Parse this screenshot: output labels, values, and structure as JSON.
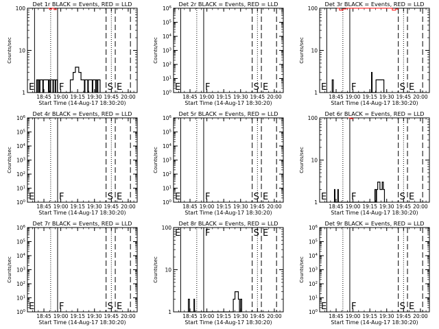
{
  "figure": {
    "xlabel": "Start Time (14-Aug-17 18:30:20)",
    "ylabel": "Counts/sec",
    "x_ticks": [
      "18:45",
      "19:00",
      "19:15",
      "19:30",
      "19:45",
      "20:00"
    ],
    "colors": {
      "events": "#000000",
      "lld": "#ff0000",
      "axes": "#000000"
    }
  },
  "chart_data": [
    {
      "type": "line",
      "title": "Det 1r BLACK = Events, RED = LLD",
      "yscale": "log",
      "ylim": [
        1,
        100
      ],
      "y_ticks": [
        "1",
        "10",
        "100"
      ],
      "xlim": [
        "18:30:20",
        "20:08:00"
      ],
      "markers": [
        {
          "time": "18:36:40",
          "style": "solid",
          "label": "E"
        },
        {
          "time": "18:51:00",
          "style": "dotted",
          "label": ""
        },
        {
          "time": "18:57:10",
          "style": "solid",
          "label": "F"
        },
        {
          "time": "19:40:20",
          "style": "dashed",
          "label": "S"
        },
        {
          "time": "19:45:00",
          "style": "dotted",
          "label": ""
        },
        {
          "time": "19:48:30",
          "style": "dashed",
          "label": "E"
        },
        {
          "time": "20:02:00",
          "style": "dashed",
          "label": ""
        }
      ],
      "series": [
        {
          "name": "Events",
          "color": "#000000",
          "points": [
            [
              "18:38:00",
              1
            ],
            [
              "18:38:30",
              2
            ],
            [
              "18:39:30",
              1
            ],
            [
              "18:40:00",
              2
            ],
            [
              "18:41:00",
              1
            ],
            [
              "18:41:30",
              2
            ],
            [
              "18:44:00",
              1
            ],
            [
              "18:44:30",
              2
            ],
            [
              "18:49:00",
              1
            ],
            [
              "18:49:30",
              2
            ],
            [
              "18:50:30",
              1
            ],
            [
              "18:51:00",
              2
            ],
            [
              "18:53:00",
              1
            ],
            [
              "18:53:30",
              2
            ],
            [
              "18:55:00",
              1
            ],
            [
              "18:55:30",
              2
            ],
            [
              "18:57:00",
              1
            ],
            [
              "19:08:00",
              1
            ],
            [
              "19:08:30",
              2
            ],
            [
              "19:11:00",
              3
            ],
            [
              "19:13:00",
              4
            ],
            [
              "19:16:00",
              3
            ],
            [
              "19:18:00",
              2
            ],
            [
              "19:21:00",
              1
            ],
            [
              "19:21:30",
              2
            ],
            [
              "19:24:00",
              1
            ],
            [
              "19:24:30",
              2
            ],
            [
              "19:28:00",
              1
            ],
            [
              "19:28:30",
              2
            ],
            [
              "19:31:00",
              1
            ],
            [
              "19:31:30",
              2
            ],
            [
              "19:32:30",
              1
            ],
            [
              "19:33:00",
              2
            ],
            [
              "19:35:00",
              1
            ]
          ]
        },
        {
          "name": "LLD",
          "color": "#ff0000",
          "points": [
            [
              "18:49:00",
              100
            ],
            [
              "18:50:00",
              95
            ],
            [
              "18:52:00",
              100
            ],
            [
              "18:54:00",
              93
            ],
            [
              "18:56:00",
              100
            ]
          ]
        }
      ]
    },
    {
      "type": "line",
      "title": "Det 2r BLACK = Events, RED = LLD",
      "yscale": "log",
      "ylim": [
        1,
        1000000
      ],
      "y_ticks": [
        "10^0",
        "10^1",
        "10^2",
        "10^3",
        "10^4",
        "10^5",
        "10^6"
      ],
      "xlim": [
        "18:30:20",
        "20:08:00"
      ],
      "markers": [
        {
          "time": "18:36:40",
          "style": "solid",
          "label": "E"
        },
        {
          "time": "18:51:00",
          "style": "dotted",
          "label": ""
        },
        {
          "time": "18:57:10",
          "style": "solid",
          "label": "F"
        },
        {
          "time": "19:40:20",
          "style": "dashed",
          "label": "S"
        },
        {
          "time": "19:45:00",
          "style": "dotted",
          "label": ""
        },
        {
          "time": "19:48:30",
          "style": "dashed",
          "label": "E"
        },
        {
          "time": "20:02:00",
          "style": "dashed",
          "label": ""
        }
      ],
      "series": []
    },
    {
      "type": "line",
      "title": "Det 3r BLACK = Events, RED = LLD",
      "yscale": "log",
      "ylim": [
        1,
        100
      ],
      "y_ticks": [
        "1",
        "10",
        "100"
      ],
      "xlim": [
        "18:30:20",
        "20:08:00"
      ],
      "markers": [
        {
          "time": "18:36:40",
          "style": "solid",
          "label": "E"
        },
        {
          "time": "18:51:00",
          "style": "dotted",
          "label": ""
        },
        {
          "time": "18:57:10",
          "style": "solid",
          "label": "F"
        },
        {
          "time": "19:40:20",
          "style": "dashed",
          "label": "S"
        },
        {
          "time": "19:45:00",
          "style": "dotted",
          "label": ""
        },
        {
          "time": "19:48:30",
          "style": "dashed",
          "label": "E"
        },
        {
          "time": "20:02:00",
          "style": "dashed",
          "label": ""
        }
      ],
      "series": [
        {
          "name": "Events",
          "color": "#000000",
          "points": [
            [
              "18:41:00",
              1
            ],
            [
              "18:41:30",
              2
            ],
            [
              "18:42:30",
              1
            ],
            [
              "19:16:00",
              1
            ],
            [
              "19:16:30",
              3
            ],
            [
              "19:17:00",
              1
            ],
            [
              "19:20:00",
              1
            ],
            [
              "19:20:30",
              2
            ],
            [
              "19:27:00",
              2
            ],
            [
              "19:27:30",
              1
            ]
          ]
        },
        {
          "name": "LLD",
          "color": "#ff0000",
          "points": [
            [
              "18:46:00",
              100
            ],
            [
              "18:48:00",
              90
            ],
            [
              "18:51:00",
              96
            ],
            [
              "18:54:00",
              100
            ],
            [
              "19:33:00",
              100
            ],
            [
              "19:35:00",
              90
            ],
            [
              "19:38:00",
              96
            ],
            [
              "19:40:00",
              100
            ]
          ]
        }
      ]
    },
    {
      "type": "line",
      "title": "Det 4r BLACK = Events, RED = LLD",
      "yscale": "log",
      "ylim": [
        1,
        1000000
      ],
      "y_ticks": [
        "10^0",
        "10^1",
        "10^2",
        "10^3",
        "10^4",
        "10^5",
        "10^6"
      ],
      "xlim": [
        "18:30:20",
        "20:08:00"
      ],
      "markers": [
        {
          "time": "18:36:40",
          "style": "solid",
          "label": "E"
        },
        {
          "time": "18:51:00",
          "style": "dotted",
          "label": ""
        },
        {
          "time": "18:57:10",
          "style": "solid",
          "label": "F"
        },
        {
          "time": "19:40:20",
          "style": "dashed",
          "label": "S"
        },
        {
          "time": "19:45:00",
          "style": "dotted",
          "label": ""
        },
        {
          "time": "19:48:30",
          "style": "dashed",
          "label": "E"
        },
        {
          "time": "20:02:00",
          "style": "dashed",
          "label": ""
        }
      ],
      "series": []
    },
    {
      "type": "line",
      "title": "Det 5r BLACK = Events, RED = LLD",
      "yscale": "log",
      "ylim": [
        1,
        1000000
      ],
      "y_ticks": [
        "10^0",
        "10^1",
        "10^2",
        "10^3",
        "10^4",
        "10^5",
        "10^6"
      ],
      "xlim": [
        "18:30:20",
        "20:08:00"
      ],
      "markers": [
        {
          "time": "18:36:40",
          "style": "solid",
          "label": "E"
        },
        {
          "time": "18:51:00",
          "style": "dotted",
          "label": ""
        },
        {
          "time": "18:57:10",
          "style": "solid",
          "label": "F"
        },
        {
          "time": "19:40:20",
          "style": "dashed",
          "label": "S"
        },
        {
          "time": "19:45:00",
          "style": "dotted",
          "label": ""
        },
        {
          "time": "19:48:30",
          "style": "dashed",
          "label": "E"
        },
        {
          "time": "20:02:00",
          "style": "dashed",
          "label": ""
        }
      ],
      "series": []
    },
    {
      "type": "line",
      "title": "Det 6r BLACK = Events, RED = LLD",
      "yscale": "log",
      "ylim": [
        1,
        100
      ],
      "y_ticks": [
        "1",
        "10",
        "100"
      ],
      "xlim": [
        "18:30:20",
        "20:08:00"
      ],
      "markers": [
        {
          "time": "18:36:40",
          "style": "solid",
          "label": "E"
        },
        {
          "time": "18:51:00",
          "style": "dotted",
          "label": ""
        },
        {
          "time": "18:57:10",
          "style": "solid",
          "label": "F"
        },
        {
          "time": "19:40:20",
          "style": "dashed",
          "label": "S"
        },
        {
          "time": "19:45:00",
          "style": "dotted",
          "label": ""
        },
        {
          "time": "19:48:30",
          "style": "dashed",
          "label": "E"
        },
        {
          "time": "20:02:00",
          "style": "dashed",
          "label": ""
        }
      ],
      "series": [
        {
          "name": "Events",
          "color": "#000000",
          "points": [
            [
              "18:43:00",
              1
            ],
            [
              "18:43:30",
              2
            ],
            [
              "18:44:00",
              1
            ],
            [
              "18:46:00",
              1
            ],
            [
              "18:46:30",
              2
            ],
            [
              "18:47:00",
              1
            ],
            [
              "19:19:00",
              1
            ],
            [
              "19:19:30",
              2
            ],
            [
              "19:20:30",
              1
            ],
            [
              "19:21:00",
              2
            ],
            [
              "19:22:00",
              3
            ],
            [
              "19:24:00",
              2
            ],
            [
              "19:26:00",
              3
            ],
            [
              "19:27:00",
              2
            ],
            [
              "19:28:00",
              1
            ]
          ]
        },
        {
          "name": "LLD",
          "color": "#ff0000",
          "points": [
            [
              "18:56:00",
              100
            ],
            [
              "18:58:00",
              96
            ],
            [
              "19:00:00",
              100
            ]
          ]
        }
      ]
    },
    {
      "type": "line",
      "title": "Det 7r BLACK = Events, RED = LLD",
      "yscale": "log",
      "ylim": [
        1,
        1000000
      ],
      "y_ticks": [
        "10^0",
        "10^1",
        "10^2",
        "10^3",
        "10^4",
        "10^5",
        "10^6"
      ],
      "xlim": [
        "18:30:20",
        "20:08:00"
      ],
      "markers": [
        {
          "time": "18:36:40",
          "style": "solid",
          "label": "E"
        },
        {
          "time": "18:51:00",
          "style": "dotted",
          "label": ""
        },
        {
          "time": "18:57:10",
          "style": "solid",
          "label": "F"
        },
        {
          "time": "19:40:20",
          "style": "dashed",
          "label": "S"
        },
        {
          "time": "19:45:00",
          "style": "dotted",
          "label": ""
        },
        {
          "time": "19:48:30",
          "style": "dashed",
          "label": "E"
        },
        {
          "time": "20:02:00",
          "style": "dashed",
          "label": ""
        }
      ],
      "series": []
    },
    {
      "type": "line",
      "title": "Det 8r BLACK = Events, RED = LLD",
      "yscale": "log",
      "ylim": [
        1,
        100
      ],
      "y_ticks": [
        "1",
        "10",
        "100"
      ],
      "xlim": [
        "18:30:20",
        "20:08:00"
      ],
      "markers": [
        {
          "time": "18:36:40",
          "style": "solid",
          "label": "E"
        },
        {
          "time": "18:51:00",
          "style": "dotted",
          "label": ""
        },
        {
          "time": "18:57:10",
          "style": "solid",
          "label": "F"
        },
        {
          "time": "19:40:20",
          "style": "dashed",
          "label": "S"
        },
        {
          "time": "19:45:00",
          "style": "dotted",
          "label": ""
        },
        {
          "time": "19:48:30",
          "style": "dashed",
          "label": "E"
        },
        {
          "time": "20:02:00",
          "style": "dashed",
          "label": ""
        }
      ],
      "series": [
        {
          "name": "Events",
          "color": "#000000",
          "points": [
            [
              "18:43:00",
              1
            ],
            [
              "18:43:30",
              2
            ],
            [
              "18:44:30",
              1
            ],
            [
              "18:48:00",
              1
            ],
            [
              "18:48:30",
              2
            ],
            [
              "18:49:00",
              1
            ],
            [
              "19:23:00",
              1
            ],
            [
              "19:23:30",
              2
            ],
            [
              "19:25:00",
              3
            ],
            [
              "19:28:00",
              2
            ],
            [
              "19:29:00",
              1
            ],
            [
              "19:30:00",
              2
            ],
            [
              "19:31:00",
              1
            ]
          ]
        }
      ]
    },
    {
      "type": "line",
      "title": "Det 9r BLACK = Events, RED = LLD",
      "yscale": "log",
      "ylim": [
        1,
        1000000
      ],
      "y_ticks": [
        "10^0",
        "10^1",
        "10^2",
        "10^3",
        "10^4",
        "10^5",
        "10^6"
      ],
      "xlim": [
        "18:30:20",
        "20:08:00"
      ],
      "markers": [
        {
          "time": "18:36:40",
          "style": "solid",
          "label": "E"
        },
        {
          "time": "18:51:00",
          "style": "dotted",
          "label": ""
        },
        {
          "time": "18:57:10",
          "style": "solid",
          "label": "F"
        },
        {
          "time": "19:40:20",
          "style": "dashed",
          "label": "S"
        },
        {
          "time": "19:45:00",
          "style": "dotted",
          "label": ""
        },
        {
          "time": "19:48:30",
          "style": "dashed",
          "label": "E"
        },
        {
          "time": "20:02:00",
          "style": "dashed",
          "label": ""
        }
      ],
      "series": []
    }
  ]
}
